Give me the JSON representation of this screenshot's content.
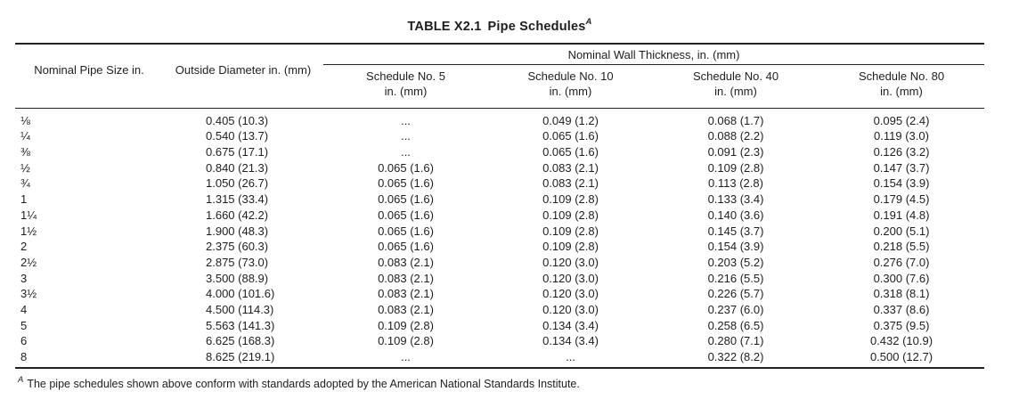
{
  "title": {
    "part1": "TABLE X2.1",
    "part2": "Pipe Schedules",
    "footnote_marker": "A"
  },
  "table": {
    "spanner": "Nominal Wall Thickness, in. (mm)",
    "col1_header": "Nominal Pipe Size in.",
    "col2_header": "Outside Diameter in. (mm)",
    "schedule_headers": [
      {
        "line1": "Schedule No. 5",
        "line2": "in. (mm)"
      },
      {
        "line1": "Schedule No. 10",
        "line2": "in. (mm)"
      },
      {
        "line1": "Schedule No. 40",
        "line2": "in. (mm)"
      },
      {
        "line1": "Schedule No. 80",
        "line2": "in. (mm)"
      }
    ],
    "rows": [
      {
        "size": "⅛",
        "od": "0.405 (10.3)",
        "sch5": "...",
        "sch10": "0.049 (1.2)",
        "sch40": "0.068 (1.7)",
        "sch80": "0.095 (2.4)"
      },
      {
        "size": "¼",
        "od": "0.540 (13.7)",
        "sch5": "...",
        "sch10": "0.065 (1.6)",
        "sch40": "0.088 (2.2)",
        "sch80": "0.119 (3.0)"
      },
      {
        "size": "⅜",
        "od": "0.675 (17.1)",
        "sch5": "...",
        "sch10": "0.065 (1.6)",
        "sch40": "0.091 (2.3)",
        "sch80": "0.126 (3.2)"
      },
      {
        "size": "½",
        "od": "0.840 (21.3)",
        "sch5": "0.065 (1.6)",
        "sch10": "0.083 (2.1)",
        "sch40": "0.109 (2.8)",
        "sch80": "0.147 (3.7)"
      },
      {
        "size": "¾",
        "od": "1.050 (26.7)",
        "sch5": "0.065 (1.6)",
        "sch10": "0.083 (2.1)",
        "sch40": "0.113 (2.8)",
        "sch80": "0.154 (3.9)"
      },
      {
        "size": "1",
        "od": "1.315 (33.4)",
        "sch5": "0.065 (1.6)",
        "sch10": "0.109 (2.8)",
        "sch40": "0.133 (3.4)",
        "sch80": "0.179 (4.5)"
      },
      {
        "size": "1¼",
        "od": "1.660 (42.2)",
        "sch5": "0.065 (1.6)",
        "sch10": "0.109 (2.8)",
        "sch40": "0.140 (3.6)",
        "sch80": "0.191 (4.8)"
      },
      {
        "size": "1½",
        "od": "1.900 (48.3)",
        "sch5": "0.065 (1.6)",
        "sch10": "0.109 (2.8)",
        "sch40": "0.145 (3.7)",
        "sch80": "0.200 (5.1)"
      },
      {
        "size": "2",
        "od": "2.375 (60.3)",
        "sch5": "0.065 (1.6)",
        "sch10": "0.109 (2.8)",
        "sch40": "0.154 (3.9)",
        "sch80": "0.218 (5.5)"
      },
      {
        "size": "2½",
        "od": "2.875 (73.0)",
        "sch5": "0.083 (2.1)",
        "sch10": "0.120 (3.0)",
        "sch40": "0.203 (5.2)",
        "sch80": "0.276 (7.0)"
      },
      {
        "size": "3",
        "od": "3.500 (88.9)",
        "sch5": "0.083 (2.1)",
        "sch10": "0.120 (3.0)",
        "sch40": "0.216 (5.5)",
        "sch80": "0.300 (7.6)"
      },
      {
        "size": "3½",
        "od": "4.000 (101.6)",
        "sch5": "0.083 (2.1)",
        "sch10": "0.120 (3.0)",
        "sch40": "0.226 (5.7)",
        "sch80": "0.318 (8.1)"
      },
      {
        "size": "4",
        "od": "4.500 (114.3)",
        "sch5": "0.083 (2.1)",
        "sch10": "0.120 (3.0)",
        "sch40": "0.237 (6.0)",
        "sch80": "0.337 (8.6)"
      },
      {
        "size": "5",
        "od": "5.563 (141.3)",
        "sch5": "0.109 (2.8)",
        "sch10": "0.134 (3.4)",
        "sch40": "0.258 (6.5)",
        "sch80": "0.375 (9.5)"
      },
      {
        "size": "6",
        "od": "6.625 (168.3)",
        "sch5": "0.109 (2.8)",
        "sch10": "0.134 (3.4)",
        "sch40": "0.280 (7.1)",
        "sch80": "0.432 (10.9)"
      },
      {
        "size": "8",
        "od": "8.625 (219.1)",
        "sch5": "...",
        "sch10": "...",
        "sch40": "0.322 (8.2)",
        "sch80": "0.500 (12.7)"
      }
    ]
  },
  "footnote": {
    "marker": "A",
    "text": "The pipe schedules shown above conform with standards adopted by the American National Standards Institute."
  },
  "colors": {
    "background": "#ffffff",
    "text": "#1e1e1e",
    "rule": "#222222"
  }
}
